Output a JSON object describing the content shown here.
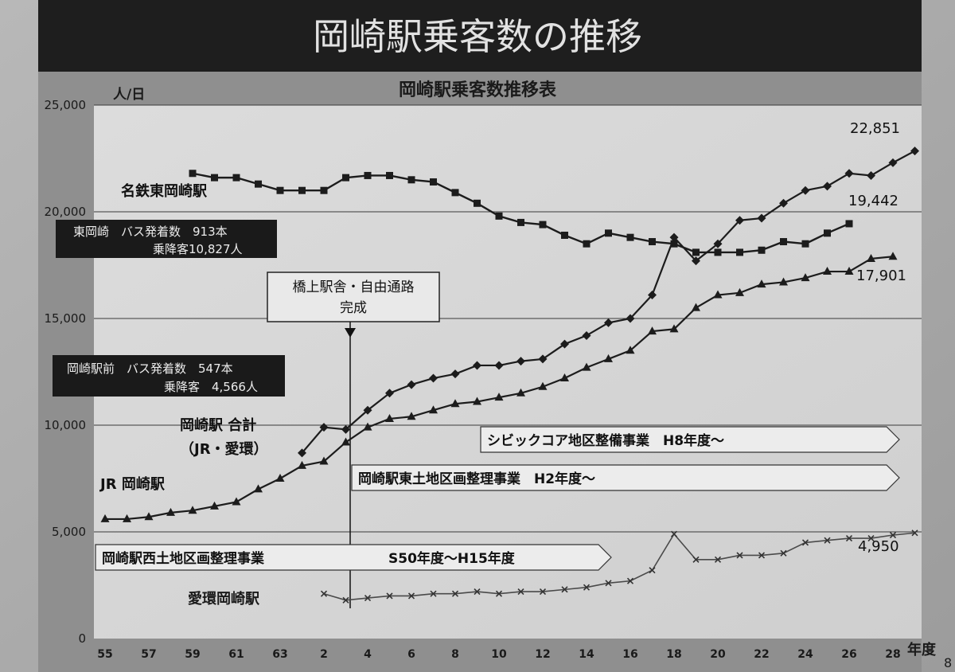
{
  "page_title": "岡崎駅乗客数の推移",
  "page_number": "8",
  "colors": {
    "paper": "#c4c4c4",
    "plot": "#e6e6e6",
    "banner": "#1e1e1e",
    "ink": "#1a1a1a"
  },
  "chart_data": {
    "type": "line",
    "title": "岡崎駅乗客数推移表",
    "ylabel": "人/日",
    "xlabel": "年度",
    "ylim": [
      0,
      25000
    ],
    "yticks": [
      "0",
      "5,000",
      "10,000",
      "15,000",
      "20,000",
      "25,000"
    ],
    "yticks_values": [
      0,
      5000,
      10000,
      15000,
      20000,
      25000
    ],
    "grid": "horizontal",
    "x_tick_labels": [
      "55",
      "57",
      "59",
      "61",
      "63",
      "2",
      "4",
      "6",
      "8",
      "10",
      "12",
      "14",
      "16",
      "18",
      "20",
      "22",
      "24",
      "26",
      "28"
    ],
    "series": [
      {
        "name": "名鉄東岡崎駅",
        "marker": "square",
        "start": 4,
        "end_label": "19,442",
        "values": [
          21800,
          21600,
          21600,
          21300,
          21000,
          21000,
          21000,
          21600,
          21700,
          21700,
          21500,
          21400,
          20900,
          20400,
          19800,
          19500,
          19400,
          18900,
          18500,
          19000,
          18800,
          18600,
          18500,
          18100,
          18100,
          18100,
          18200,
          18600,
          18500,
          19000,
          19442
        ]
      },
      {
        "name": "岡崎駅 合計",
        "label_lines": [
          "岡崎駅 合計",
          "（JR・愛環）"
        ],
        "marker": "diamond",
        "start": 9,
        "end_label": "22,851",
        "values": [
          8700,
          9900,
          9800,
          10700,
          11500,
          11900,
          12200,
          12400,
          12800,
          12800,
          13000,
          13100,
          13800,
          14200,
          14800,
          15000,
          16100,
          18800,
          17700,
          18500,
          19600,
          19700,
          20400,
          21000,
          21200,
          21800,
          21700,
          22300,
          22851
        ]
      },
      {
        "name": "JR 岡崎駅",
        "marker": "triangle",
        "start": 0,
        "end_label": "17,901",
        "values": [
          5600,
          5600,
          5700,
          5900,
          6000,
          6200,
          6400,
          7000,
          7500,
          8100,
          8300,
          9200,
          9900,
          10300,
          10400,
          10700,
          11000,
          11100,
          11300,
          11500,
          11800,
          12200,
          12700,
          13100,
          13500,
          14400,
          14500,
          15500,
          16100,
          16200,
          16600,
          16700,
          16900,
          17200,
          17200,
          17800,
          17901
        ]
      },
      {
        "name": "愛環岡崎駅",
        "marker": "x",
        "start": 10,
        "end_label": "4,950",
        "values": [
          2100,
          1800,
          1900,
          2000,
          2000,
          2100,
          2100,
          2200,
          2100,
          2200,
          2200,
          2300,
          2400,
          2600,
          2700,
          3200,
          4900,
          3700,
          3700,
          3900,
          3900,
          4000,
          4500,
          4600,
          4700,
          4700,
          4850,
          4950
        ]
      }
    ],
    "annotations": {
      "bus_higashi_l1": "東岡崎　バス発着数　913本",
      "bus_higashi_l2": "乗降客10,827人",
      "bridge_l1": "橋上駅舎・自由通路",
      "bridge_l2": "完成",
      "bus_ekimae_l1": "岡崎駅前　バス発着数　547本",
      "bus_ekimae_l2": "乗降客　4,566人",
      "civic": "シビックコア地区整備事業　H8年度～",
      "east": "岡崎駅東土地区画整理事業　H2年度～",
      "west_name": "岡崎駅西土地区画整理事業",
      "west_period": "S50年度～H15年度"
    }
  }
}
